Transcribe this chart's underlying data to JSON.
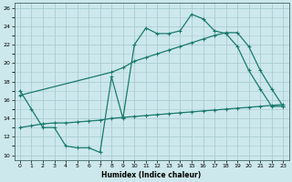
{
  "title": "",
  "xlabel": "Humidex (Indice chaleur)",
  "bg_color": "#cce8ec",
  "line_color": "#1a7a6e",
  "grid_color": "#aaccd4",
  "xlim": [
    -0.5,
    23.5
  ],
  "ylim": [
    9.5,
    26.5
  ],
  "xticks": [
    0,
    1,
    2,
    3,
    4,
    5,
    6,
    7,
    8,
    9,
    10,
    11,
    12,
    13,
    14,
    15,
    16,
    17,
    18,
    19,
    20,
    21,
    22,
    23
  ],
  "yticks": [
    10,
    12,
    14,
    16,
    18,
    20,
    22,
    24,
    26
  ],
  "line1_x": [
    0,
    1,
    2,
    3,
    4,
    5,
    6,
    7,
    8,
    9,
    10,
    11,
    12,
    13,
    14,
    15,
    16,
    17,
    18,
    19,
    20,
    21,
    22,
    23
  ],
  "line1_y": [
    17.0,
    15.0,
    13.0,
    13.0,
    11.0,
    10.8,
    10.8,
    10.3,
    18.5,
    14.0,
    22.0,
    23.8,
    23.2,
    23.2,
    23.5,
    25.3,
    24.8,
    23.5,
    23.2,
    21.8,
    19.2,
    17.2,
    15.3,
    15.3
  ],
  "line2_x": [
    0,
    8,
    9,
    10,
    11,
    12,
    13,
    14,
    15,
    16,
    17,
    18,
    19,
    20,
    21,
    22,
    23
  ],
  "line2_y": [
    16.5,
    19.0,
    19.5,
    20.2,
    20.6,
    21.0,
    21.4,
    21.8,
    22.2,
    22.6,
    23.0,
    23.3,
    23.3,
    21.8,
    19.2,
    17.2,
    15.3
  ],
  "line3_x": [
    0,
    1,
    2,
    3,
    4,
    5,
    6,
    7,
    8,
    9,
    10,
    11,
    12,
    13,
    14,
    15,
    16,
    17,
    18,
    19,
    20,
    21,
    22,
    23
  ],
  "line3_y": [
    13.0,
    13.2,
    13.4,
    13.5,
    13.5,
    13.6,
    13.7,
    13.8,
    14.0,
    14.1,
    14.2,
    14.3,
    14.4,
    14.5,
    14.6,
    14.7,
    14.8,
    14.9,
    15.0,
    15.1,
    15.2,
    15.3,
    15.4,
    15.5
  ]
}
